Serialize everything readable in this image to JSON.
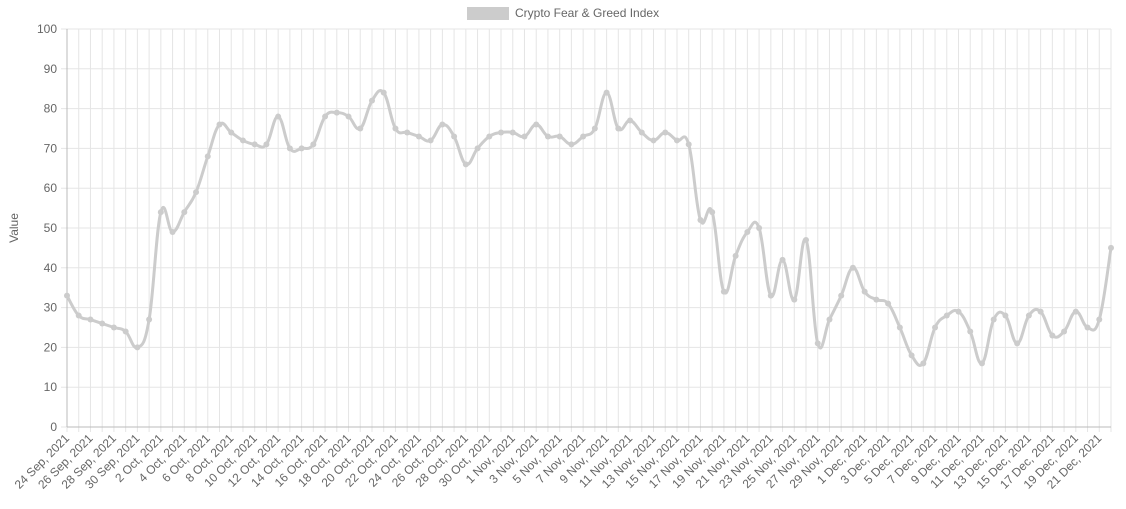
{
  "chart_data": {
    "type": "line",
    "y_label": "Value",
    "categories": [
      "24 Sep, 2021",
      null,
      "26 Sep, 2021",
      null,
      "28 Sep, 2021",
      null,
      "30 Sep, 2021",
      null,
      "2 Oct, 2021",
      null,
      "4 Oct, 2021",
      null,
      "6 Oct, 2021",
      null,
      "8 Oct, 2021",
      null,
      "10 Oct, 2021",
      null,
      "12 Oct, 2021",
      null,
      "14 Oct, 2021",
      null,
      "16 Oct, 2021",
      null,
      "18 Oct, 2021",
      null,
      "20 Oct, 2021",
      null,
      "22 Oct, 2021",
      null,
      "24 Oct, 2021",
      null,
      "26 Oct, 2021",
      null,
      "28 Oct, 2021",
      null,
      "30 Oct, 2021",
      null,
      "1 Nov, 2021",
      null,
      "3 Nov, 2021",
      null,
      "5 Nov, 2021",
      null,
      "7 Nov, 2021",
      null,
      "9 Nov, 2021",
      null,
      "11 Nov, 2021",
      null,
      "13 Nov, 2021",
      null,
      "15 Nov, 2021",
      null,
      "17 Nov, 2021",
      null,
      "19 Nov, 2021",
      null,
      "21 Nov, 2021",
      null,
      "23 Nov, 2021",
      null,
      "25 Nov, 2021",
      null,
      "27 Nov, 2021",
      null,
      "29 Nov, 2021",
      null,
      "1 Dec, 2021",
      null,
      "3 Dec, 2021",
      null,
      "5 Dec, 2021",
      null,
      "7 Dec, 2021",
      null,
      "9 Dec, 2021",
      null,
      "11 Dec, 2021",
      null,
      "13 Dec, 2021",
      null,
      "15 Dec, 2021",
      null,
      "17 Dec, 2021",
      null,
      "19 Dec, 2021",
      null,
      "21 Dec, 2021",
      null
    ],
    "series": [
      {
        "name": "Crypto Fear & Greed Index",
        "color": "#cccccc",
        "values": [
          33,
          28,
          27,
          26,
          25,
          24,
          20,
          27,
          54,
          49,
          54,
          59,
          68,
          76,
          74,
          72,
          71,
          71,
          78,
          70,
          70,
          71,
          78,
          79,
          78,
          75,
          82,
          84,
          75,
          74,
          73,
          72,
          76,
          73,
          66,
          70,
          73,
          74,
          74,
          73,
          76,
          73,
          73,
          71,
          73,
          75,
          84,
          75,
          77,
          74,
          72,
          74,
          72,
          71,
          52,
          54,
          34,
          43,
          49,
          50,
          33,
          42,
          32,
          47,
          21,
          27,
          33,
          40,
          34,
          32,
          31,
          25,
          18,
          16,
          25,
          28,
          29,
          24,
          16,
          27,
          28,
          21,
          28,
          29,
          23,
          24,
          29,
          25,
          27,
          45
        ]
      }
    ],
    "ylim": [
      0,
      100
    ],
    "yticks": [
      0,
      10,
      20,
      30,
      40,
      50,
      60,
      70,
      80,
      90,
      100
    ],
    "grid": true,
    "legend": "top"
  }
}
